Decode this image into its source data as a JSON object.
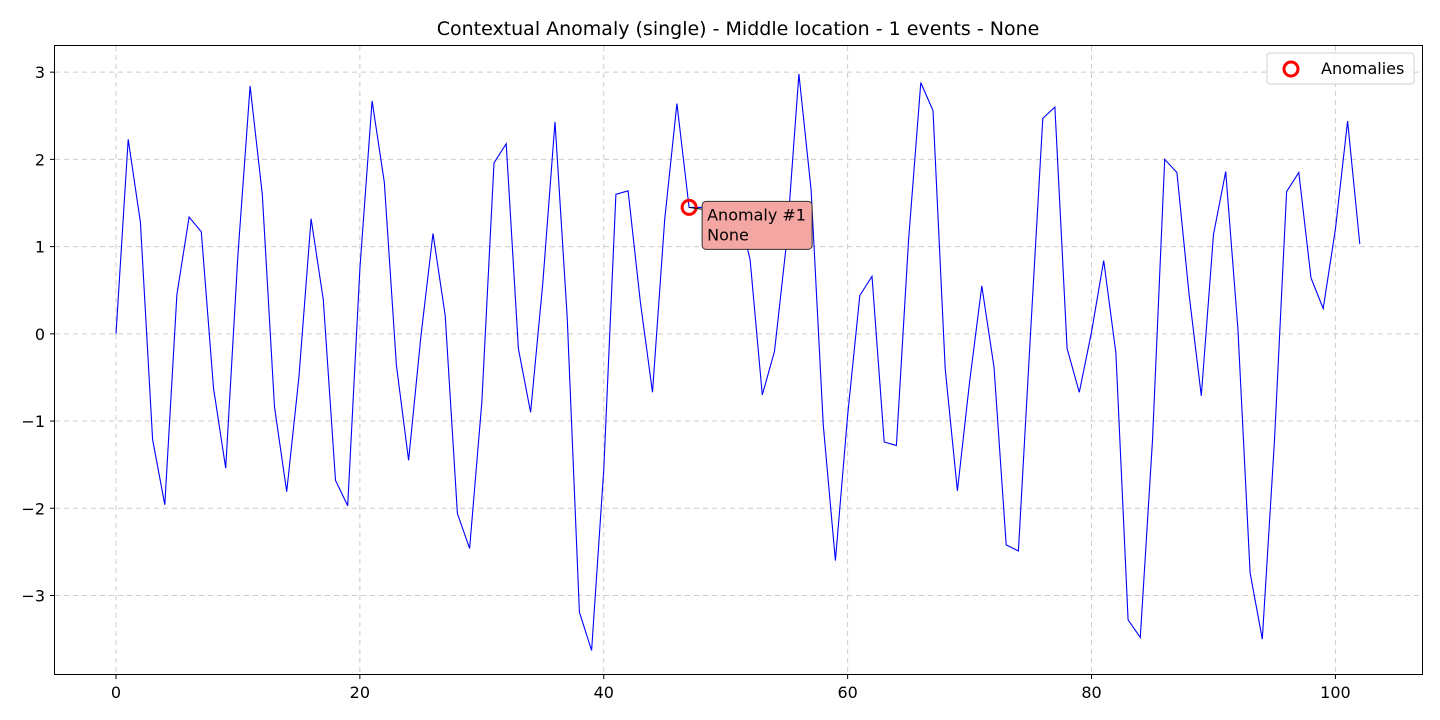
{
  "chart_data": {
    "type": "line",
    "title": "Contextual Anomaly (single) - Middle location - 1 events - None",
    "xlabel": "",
    "ylabel": "",
    "xlim": [
      -5,
      107.1
    ],
    "ylim": [
      -3.9,
      3.3
    ],
    "xticks": [
      0,
      20,
      40,
      60,
      80,
      100
    ],
    "yticks": [
      3,
      2,
      1,
      0,
      -1,
      -2,
      -3
    ],
    "ytick_labels": [
      "3",
      "2",
      "1",
      "0",
      "−1",
      "−2",
      "−3"
    ],
    "grid": true,
    "legend_position": "top-right",
    "line_color": "#0000ff",
    "anomaly_color": "#ff0000",
    "x": [
      0,
      1,
      2,
      3,
      4,
      5,
      6,
      7,
      8,
      9,
      10,
      11,
      12,
      13,
      14,
      15,
      16,
      17,
      18,
      19,
      20,
      21,
      22,
      23,
      24,
      25,
      26,
      27,
      28,
      29,
      30,
      31,
      32,
      33,
      34,
      35,
      36,
      37,
      38,
      39,
      40,
      41,
      42,
      43,
      44,
      45,
      46,
      47,
      48,
      49,
      50,
      51,
      52,
      53,
      54,
      55,
      56,
      57,
      58,
      59,
      60,
      61,
      62,
      63,
      64,
      65,
      66,
      67,
      68,
      69,
      70,
      71,
      72,
      73,
      74,
      75,
      76,
      77,
      78,
      79,
      80,
      81,
      82,
      83,
      84,
      85,
      86,
      87,
      88,
      89,
      90,
      91,
      92,
      93,
      94,
      95,
      96,
      97,
      98,
      99,
      100,
      101,
      102
    ],
    "series": [
      {
        "name": "",
        "values": [
          0.0,
          2.23,
          1.28,
          -1.21,
          -1.96,
          0.45,
          1.34,
          1.17,
          -0.62,
          -1.54,
          0.9,
          2.84,
          1.6,
          -0.84,
          -1.81,
          -0.5,
          1.32,
          0.39,
          -1.68,
          -1.97,
          0.75,
          2.67,
          1.74,
          -0.36,
          -1.45,
          -0.04,
          1.15,
          0.21,
          -2.06,
          -2.46,
          -0.79,
          1.96,
          2.18,
          -0.17,
          -0.9,
          0.58,
          2.43,
          0.19,
          -3.19,
          -3.63,
          -1.55,
          1.6,
          1.64,
          0.37,
          -0.67,
          1.31,
          2.64,
          1.45,
          1.45,
          1.45,
          1.45,
          1.45,
          0.85,
          -0.7,
          -0.2,
          1.06,
          2.98,
          1.65,
          -1.05,
          -2.6,
          -0.94,
          0.44,
          0.66,
          -1.24,
          -1.28,
          1.08,
          2.88,
          2.56,
          -0.4,
          -1.8,
          -0.55,
          0.55,
          -0.38,
          -2.42,
          -2.49,
          0.02,
          2.47,
          2.6,
          -0.17,
          -0.67,
          0.02,
          0.84,
          -0.22,
          -3.28,
          -3.48,
          -1.22,
          2.0,
          1.85,
          0.45,
          -0.71,
          1.14,
          1.86,
          0.06,
          -2.74,
          -3.5,
          -1.24,
          1.63,
          1.85,
          0.64,
          0.29,
          1.2,
          2.44,
          1.03
        ]
      }
    ],
    "anomalies": [
      {
        "x": 47,
        "y": 1.45
      }
    ],
    "legend": {
      "label": "Anomalies"
    },
    "annotation": {
      "line1": "Anomaly #1",
      "line2": "None",
      "box_color": "#f4a6a3"
    }
  }
}
